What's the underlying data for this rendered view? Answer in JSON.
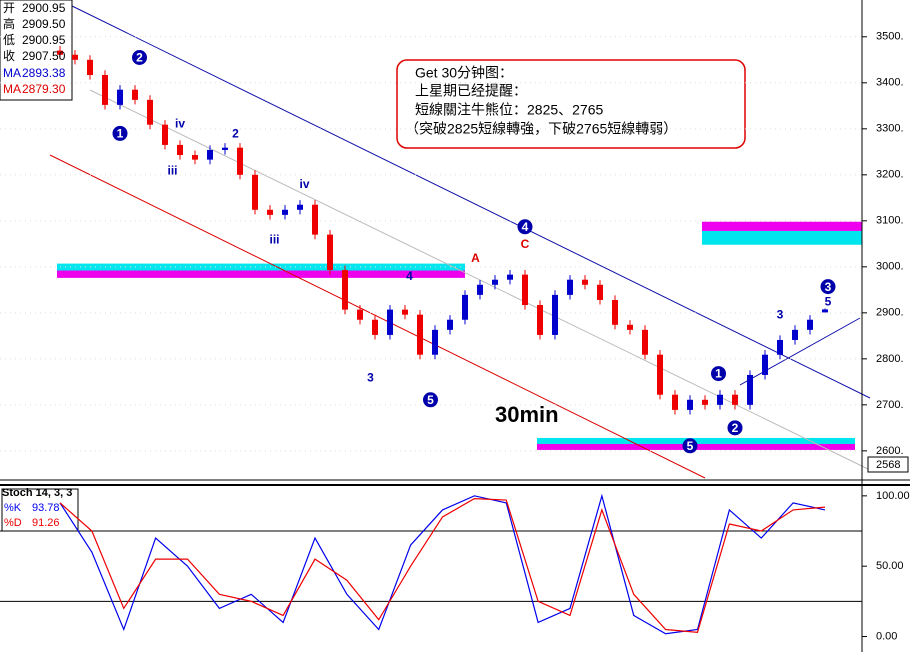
{
  "chart_data": [
    {
      "type": "candlestick",
      "ohlc_box": [
        [
          "开",
          "2900.95"
        ],
        [
          "高",
          "2909.50"
        ],
        [
          "低",
          "2900.95"
        ],
        [
          "收",
          "2907.50"
        ]
      ],
      "ma_labels": [
        {
          "name": "MA",
          "value": "2893.38",
          "color": "#0000cc"
        },
        {
          "name": "MA",
          "value": "2879.30",
          "color": "#dd0000"
        }
      ],
      "note": [
        "Get 30分钟图：",
        "上星期已经提醒：",
        "短線關注牛熊位：2825、2765",
        "（突破2825短線轉強，下破2765短線轉弱）"
      ],
      "caption": "30min",
      "cursor_label": "2568",
      "up_color": "#0000cc",
      "down_color": "#ee0000",
      "open": [
        3470,
        3461,
        3450,
        3417,
        3352,
        3385,
        3363,
        3309,
        3265,
        3243,
        3233,
        3254,
        3259,
        3200,
        3124,
        3113,
        3124,
        3135,
        3070,
        2993,
        2907,
        2885,
        2852,
        2907,
        2896,
        2809,
        2863,
        2885,
        2939,
        2961,
        2972,
        2983,
        2917,
        2852,
        2939,
        2972,
        2961,
        2928,
        2874,
        2863,
        2809,
        2722,
        2689,
        2711,
        2700,
        2722,
        2700,
        2765,
        2809,
        2841,
        2863,
        2900.95
      ],
      "high": [
        3480,
        3471,
        3460,
        3427,
        3395,
        3395,
        3373,
        3319,
        3275,
        3253,
        3264,
        3269,
        3269,
        3210,
        3134,
        3134,
        3145,
        3145,
        3080,
        3003,
        2917,
        2895,
        2917,
        2917,
        2906,
        2873,
        2895,
        2949,
        2971,
        2982,
        2993,
        2993,
        2927,
        2949,
        2982,
        2982,
        2971,
        2938,
        2884,
        2873,
        2819,
        2732,
        2721,
        2721,
        2732,
        2732,
        2775,
        2819,
        2851,
        2873,
        2895,
        2909.5
      ],
      "low": [
        3451,
        3440,
        3407,
        3342,
        3342,
        3353,
        3299,
        3255,
        3233,
        3223,
        3223,
        3244,
        3190,
        3114,
        3103,
        3103,
        3114,
        3060,
        2983,
        2897,
        2875,
        2842,
        2842,
        2886,
        2799,
        2799,
        2853,
        2875,
        2929,
        2951,
        2962,
        2907,
        2842,
        2842,
        2929,
        2951,
        2918,
        2864,
        2853,
        2799,
        2712,
        2679,
        2679,
        2690,
        2690,
        2690,
        2690,
        2755,
        2799,
        2831,
        2853,
        2900.95
      ],
      "close": [
        3461,
        3450,
        3417,
        3352,
        3385,
        3363,
        3309,
        3265,
        3243,
        3233,
        3254,
        3259,
        3200,
        3124,
        3113,
        3124,
        3135,
        3070,
        2993,
        2907,
        2885,
        2852,
        2907,
        2896,
        2809,
        2863,
        2885,
        2939,
        2961,
        2972,
        2983,
        2917,
        2852,
        2939,
        2972,
        2961,
        2928,
        2874,
        2863,
        2809,
        2722,
        2689,
        2711,
        2700,
        2722,
        2700,
        2765,
        2809,
        2841,
        2863,
        2885,
        2907.5
      ],
      "ylim": [
        2541,
        3580
      ],
      "yticks": [
        {
          "value": 3500,
          "label": "3500."
        },
        {
          "value": 3400,
          "label": "3400."
        },
        {
          "value": 3300,
          "label": "3300."
        },
        {
          "value": 3200,
          "label": "3200."
        },
        {
          "value": 3100,
          "label": "3100."
        },
        {
          "value": 3000,
          "label": "3000."
        },
        {
          "value": 2900,
          "label": "2900."
        },
        {
          "value": 2800,
          "label": "2800."
        },
        {
          "value": 2700,
          "label": "2700."
        },
        {
          "value": 2600,
          "label": "2600."
        }
      ],
      "zones": [
        {
          "bars": [
            0,
            27
          ],
          "cyan": [
            2992,
            3007
          ],
          "magenta": [
            2976,
            2992
          ]
        },
        {
          "bars": [
            43,
            54
          ],
          "cyan": [
            3048,
            3078
          ],
          "magenta": [
            3078,
            3098
          ]
        },
        {
          "bars": [
            32,
            53
          ],
          "cyan": [
            2615,
            2628
          ],
          "magenta": [
            2602,
            2615
          ]
        }
      ],
      "waves": [
        {
          "text": "1",
          "bar": 4,
          "price": 3290,
          "circled": true,
          "color": "#0000aa"
        },
        {
          "text": "2",
          "bar": 5.3,
          "price": 3455,
          "circled": true,
          "color": "#0000aa"
        },
        {
          "text": "iii",
          "bar": 7.5,
          "price": 3210,
          "circled": false,
          "color": "#0000aa"
        },
        {
          "text": "iv",
          "bar": 8,
          "price": 3312,
          "circled": false,
          "color": "#0000aa"
        },
        {
          "text": "2",
          "bar": 11.7,
          "price": 3290,
          "circled": false,
          "color": "#0000aa"
        },
        {
          "text": "iii",
          "bar": 14.3,
          "price": 3060,
          "circled": false,
          "color": "#0000aa"
        },
        {
          "text": "iv",
          "bar": 16.3,
          "price": 3180,
          "circled": false,
          "color": "#0000aa"
        },
        {
          "text": "3",
          "bar": 20.7,
          "price": 2760,
          "circled": false,
          "color": "#0000aa"
        },
        {
          "text": "4",
          "bar": 23.3,
          "price": 2980,
          "circled": false,
          "color": "#0000aa"
        },
        {
          "text": "5",
          "bar": 24.7,
          "price": 2711,
          "circled": true,
          "color": "#0000aa"
        },
        {
          "text": "A",
          "bar": 27.7,
          "price": 3020,
          "circled": false,
          "color": "#dd0000"
        },
        {
          "text": "4",
          "bar": 31,
          "price": 3087,
          "circled": true,
          "color": "#0000aa"
        },
        {
          "text": "C",
          "bar": 31,
          "price": 3050,
          "circled": false,
          "color": "#dd0000"
        },
        {
          "text": "5",
          "bar": 42,
          "price": 2611,
          "circled": true,
          "color": "#0000aa"
        },
        {
          "text": "1",
          "bar": 43.9,
          "price": 2768,
          "circled": true,
          "color": "#0000aa"
        },
        {
          "text": "2",
          "bar": 45,
          "price": 2650,
          "circled": true,
          "color": "#0000aa"
        },
        {
          "text": "3",
          "bar": 48,
          "price": 2897,
          "circled": false,
          "color": "#0000aa"
        },
        {
          "text": "3",
          "bar": 51.2,
          "price": 2957,
          "circled": true,
          "color": "#0000aa"
        },
        {
          "text": "5",
          "bar": 51.2,
          "price": 2925,
          "circled": false,
          "color": "#0000aa"
        }
      ]
    },
    {
      "type": "line",
      "title": "Stoch 14, 3, 3",
      "legend": [
        [
          "%K",
          "93.78"
        ],
        [
          "%D",
          "91.26"
        ]
      ],
      "series": [
        {
          "name": "%K",
          "color": "#0000ee",
          "values": [
            95,
            60,
            5,
            70,
            50,
            20,
            30,
            10,
            70,
            30,
            5,
            65,
            90,
            100,
            95,
            10,
            20,
            100,
            15,
            2,
            5,
            90,
            70,
            95,
            90
          ]
        },
        {
          "name": "%D",
          "color": "#ee0000",
          "values": [
            95,
            75,
            20,
            55,
            55,
            30,
            25,
            15,
            55,
            40,
            12,
            50,
            85,
            98,
            97,
            25,
            15,
            90,
            30,
            5,
            3,
            80,
            75,
            90,
            92
          ]
        }
      ],
      "ylim": [
        -11,
        107
      ],
      "yticks": [
        {
          "value": 100,
          "label": "100.00"
        },
        {
          "value": 50,
          "label": "50.00"
        },
        {
          "value": 0,
          "label": "0.00"
        }
      ],
      "levels": [
        75,
        25
      ]
    }
  ]
}
